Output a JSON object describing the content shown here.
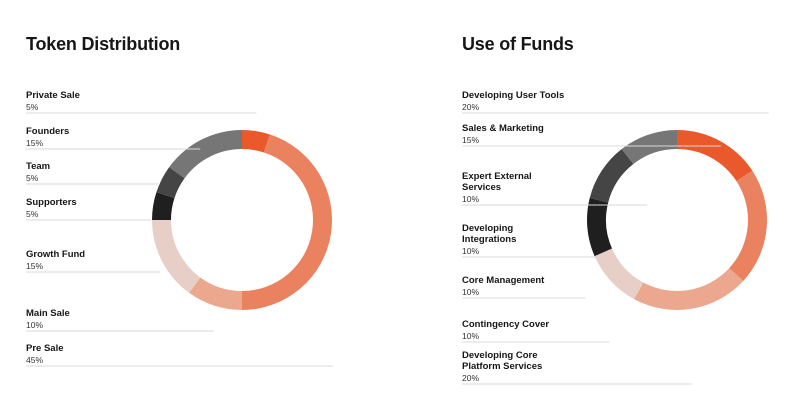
{
  "colors": {
    "orange": "#e9592c",
    "salmon": "#ea8260",
    "light_salmon": "#eba88e",
    "pale": "#e7cfc7",
    "gray": "#767676",
    "dark_gray": "#454545",
    "black": "#1f1f1f"
  },
  "chart_data": [
    {
      "type": "pie",
      "title": "Token Distribution",
      "donut": true,
      "slices": [
        {
          "label": "Private Sale",
          "value": 5,
          "value_label": "5%",
          "color": "#e9592c"
        },
        {
          "label": "Pre Sale",
          "value": 45,
          "value_label": "45%",
          "color": "#ea8260"
        },
        {
          "label": "Main Sale",
          "value": 10,
          "value_label": "10%",
          "color": "#eba88e"
        },
        {
          "label": "Growth Fund",
          "value": 15,
          "value_label": "15%",
          "color": "#e7cfc7"
        },
        {
          "label": "Supporters",
          "value": 5,
          "value_label": "5%",
          "color": "#1f1f1f"
        },
        {
          "label": "Team",
          "value": 5,
          "value_label": "5%",
          "color": "#454545"
        },
        {
          "label": "Founders",
          "value": 15,
          "value_label": "15%",
          "color": "#767676"
        }
      ],
      "legend_order": [
        "Private Sale",
        "Founders",
        "Team",
        "Supporters",
        "Growth Fund",
        "Main Sale",
        "Pre Sale"
      ]
    },
    {
      "type": "pie",
      "title": "Use of Funds",
      "donut": true,
      "slices": [
        {
          "label": "Sales & Marketing",
          "value": 15,
          "value_label": "15%",
          "color": "#e9592c"
        },
        {
          "label": "Developing User Tools",
          "value": 20,
          "value_label": "20%",
          "color": "#ea8260"
        },
        {
          "label": "Developing Core Platform Services",
          "value": 20,
          "value_label": "20%",
          "color": "#eba88e"
        },
        {
          "label": "Contingency Cover",
          "value": 10,
          "value_label": "10%",
          "color": "#e7cfc7"
        },
        {
          "label": "Core Management",
          "value": 10,
          "value_label": "10%",
          "color": "#1f1f1f"
        },
        {
          "label": "Developing Integrations",
          "value": 10,
          "value_label": "10%",
          "color": "#454545"
        },
        {
          "label": "Expert External Services",
          "value": 10,
          "value_label": "10%",
          "color": "#767676"
        }
      ],
      "legend_order": [
        "Developing User Tools",
        "Sales & Marketing",
        "Expert External Services",
        "Developing Integrations",
        "Core Management",
        "Contingency Cover",
        "Developing Core Platform Services"
      ]
    }
  ]
}
